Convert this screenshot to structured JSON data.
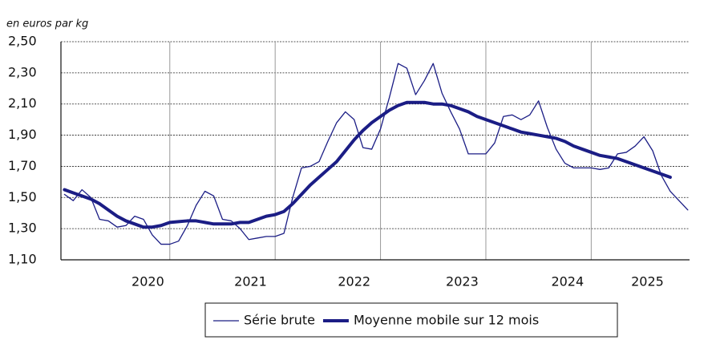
{
  "chart_data": {
    "type": "line",
    "subtitle": "en euros par kg",
    "x": [
      0,
      1,
      2,
      3,
      4,
      5,
      6,
      7,
      8,
      9,
      10,
      11,
      12,
      13,
      14,
      15,
      16,
      17,
      18,
      19,
      20,
      21,
      22,
      23,
      24,
      25,
      26,
      27,
      28,
      29,
      30,
      31,
      32,
      33,
      34,
      35,
      36,
      37,
      38,
      39,
      40,
      41,
      42,
      43,
      44,
      45,
      46,
      47,
      48,
      49,
      50,
      51,
      52,
      53,
      54,
      55,
      56,
      57,
      58,
      59,
      60,
      61,
      62,
      63,
      64,
      65,
      66,
      67,
      68,
      69,
      70,
      71
    ],
    "series": [
      {
        "name": "Série brute",
        "color": "#1b1d85",
        "line_width": 1.3,
        "values": [
          1.52,
          1.48,
          1.55,
          1.5,
          1.36,
          1.35,
          1.31,
          1.32,
          1.38,
          1.36,
          1.26,
          1.2,
          1.2,
          1.22,
          1.32,
          1.45,
          1.54,
          1.51,
          1.36,
          1.35,
          1.3,
          1.23,
          1.24,
          1.25,
          1.25,
          1.27,
          1.5,
          1.69,
          1.7,
          1.73,
          1.86,
          1.98,
          2.05,
          2.0,
          1.82,
          1.81,
          1.94,
          2.14,
          2.36,
          2.33,
          2.16,
          2.25,
          2.36,
          2.17,
          2.05,
          1.94,
          1.78,
          1.78,
          1.78,
          1.85,
          2.02,
          2.03,
          2.0,
          2.03,
          2.12,
          1.95,
          1.81,
          1.72,
          1.69,
          1.69,
          1.69,
          1.68,
          1.69,
          1.78,
          1.79,
          1.83,
          1.89,
          1.8,
          1.64,
          1.54,
          1.48,
          1.42
        ]
      },
      {
        "name": "Moyenne mobile sur 12 mois",
        "color": "#1b1d85",
        "line_width": 4,
        "values": [
          1.55,
          1.53,
          1.51,
          1.49,
          1.46,
          1.42,
          1.38,
          1.35,
          1.33,
          1.31,
          1.31,
          1.32,
          1.34,
          1.345,
          1.35,
          1.35,
          1.34,
          1.33,
          1.33,
          1.33,
          1.34,
          1.34,
          1.36,
          1.38,
          1.39,
          1.41,
          1.46,
          1.52,
          1.58,
          1.63,
          1.68,
          1.73,
          1.8,
          1.87,
          1.93,
          1.98,
          2.02,
          2.06,
          2.09,
          2.11,
          2.11,
          2.11,
          2.1,
          2.1,
          2.09,
          2.07,
          2.05,
          2.02,
          2.0,
          1.98,
          1.96,
          1.94,
          1.92,
          1.91,
          1.9,
          1.89,
          1.88,
          1.86,
          1.83,
          1.81,
          1.79,
          1.77,
          1.76,
          1.75,
          1.73,
          1.71,
          1.69,
          1.67,
          1.65,
          1.63,
          null,
          null
        ]
      }
    ],
    "xlim": [
      -0.4,
      71.2
    ],
    "xticks": [
      {
        "value": 9.5,
        "label": "2020"
      },
      {
        "value": 21.2,
        "label": "2021"
      },
      {
        "value": 33.0,
        "label": "2022"
      },
      {
        "value": 45.3,
        "label": "2023"
      },
      {
        "value": 57.3,
        "label": "2024"
      },
      {
        "value": 66.4,
        "label": "2025"
      }
    ],
    "xgrid": [
      12,
      24,
      36,
      48,
      60
    ],
    "ylim": [
      1.1,
      2.5
    ],
    "yticks": [
      {
        "value": 1.1,
        "label": "1,10"
      },
      {
        "value": 1.3,
        "label": "1,30"
      },
      {
        "value": 1.5,
        "label": "1,50"
      },
      {
        "value": 1.7,
        "label": "1,70"
      },
      {
        "value": 1.9,
        "label": "1,90"
      },
      {
        "value": 2.1,
        "label": "2,10"
      },
      {
        "value": 2.3,
        "label": "2,30"
      },
      {
        "value": 2.5,
        "label": "2,50"
      }
    ],
    "grid": true,
    "legend": "bottom"
  }
}
